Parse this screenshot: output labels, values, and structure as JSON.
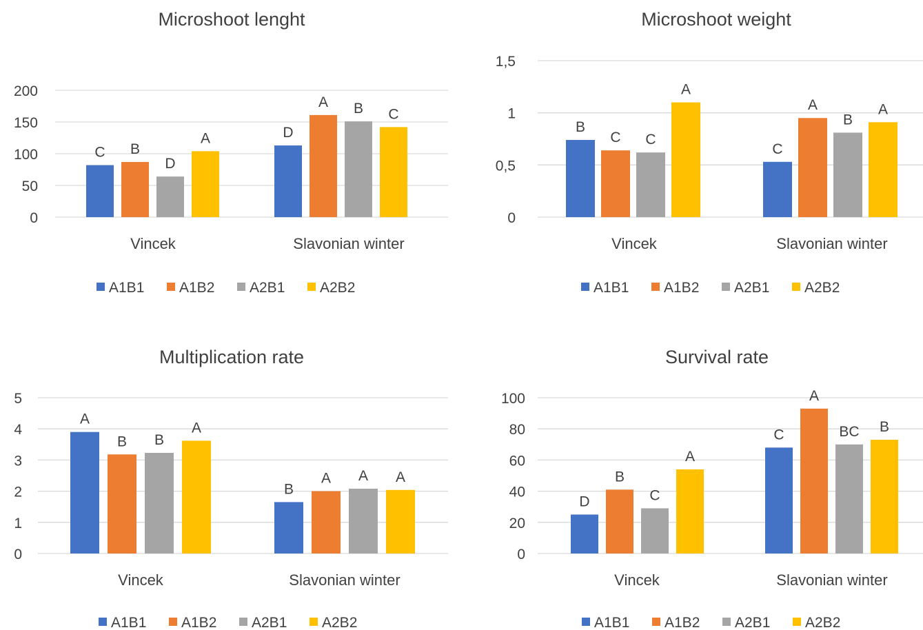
{
  "chart_data": [
    {
      "type": "bar",
      "title": "Microshoot lenght",
      "categories": [
        "Vincek",
        "Slavonian winter"
      ],
      "ylim": [
        0,
        200
      ],
      "yticks": [
        "0",
        "50",
        "100",
        "150",
        "200"
      ],
      "ytick_values": [
        0,
        50,
        100,
        150,
        200
      ],
      "grid": true,
      "legend_position": "bottom",
      "series": [
        {
          "name": "A1B1",
          "color": "#4472C4",
          "values": [
            82,
            113
          ],
          "labels": [
            "C",
            "D"
          ]
        },
        {
          "name": "A1B2",
          "color": "#ED7D31",
          "values": [
            87,
            161
          ],
          "labels": [
            "B",
            "A"
          ]
        },
        {
          "name": "A2B1",
          "color": "#A5A5A5",
          "values": [
            64,
            151
          ],
          "labels": [
            "D",
            "B"
          ]
        },
        {
          "name": "A2B2",
          "color": "#FFC000",
          "values": [
            104,
            142
          ],
          "labels": [
            "A",
            "C"
          ]
        }
      ]
    },
    {
      "type": "bar",
      "title": "Microshoot weight",
      "categories": [
        "Vincek",
        "Slavonian winter"
      ],
      "ylim": [
        0,
        1.5
      ],
      "yticks": [
        "0",
        "0,5",
        "1",
        "1,5"
      ],
      "ytick_values": [
        0,
        0.5,
        1,
        1.5
      ],
      "grid": true,
      "legend_position": "bottom",
      "series": [
        {
          "name": "A1B1",
          "color": "#4472C4",
          "values": [
            0.74,
            0.53
          ],
          "labels": [
            "B",
            "C"
          ]
        },
        {
          "name": "A1B2",
          "color": "#ED7D31",
          "values": [
            0.64,
            0.95
          ],
          "labels": [
            "C",
            "A"
          ]
        },
        {
          "name": "A2B1",
          "color": "#A5A5A5",
          "values": [
            0.62,
            0.81
          ],
          "labels": [
            "C",
            "B"
          ]
        },
        {
          "name": "A2B2",
          "color": "#FFC000",
          "values": [
            1.1,
            0.91
          ],
          "labels": [
            "A",
            "A"
          ]
        }
      ]
    },
    {
      "type": "bar",
      "title": "Multiplication rate",
      "categories": [
        "Vincek",
        "Slavonian winter"
      ],
      "ylim": [
        0,
        5
      ],
      "yticks": [
        "0",
        "1",
        "2",
        "3",
        "4",
        "5"
      ],
      "ytick_values": [
        0,
        1,
        2,
        3,
        4,
        5
      ],
      "grid": true,
      "legend_position": "bottom",
      "series": [
        {
          "name": "A1B1",
          "color": "#4472C4",
          "values": [
            3.9,
            1.65
          ],
          "labels": [
            "A",
            "B"
          ]
        },
        {
          "name": "A1B2",
          "color": "#ED7D31",
          "values": [
            3.18,
            2.0
          ],
          "labels": [
            "B",
            "A"
          ]
        },
        {
          "name": "A2B1",
          "color": "#A5A5A5",
          "values": [
            3.23,
            2.08
          ],
          "labels": [
            "B",
            "A"
          ]
        },
        {
          "name": "A2B2",
          "color": "#FFC000",
          "values": [
            3.62,
            2.04
          ],
          "labels": [
            "A",
            "A"
          ]
        }
      ]
    },
    {
      "type": "bar",
      "title": "Survival rate",
      "categories": [
        "Vincek",
        "Slavonian winter"
      ],
      "ylim": [
        0,
        100
      ],
      "yticks": [
        "0",
        "20",
        "40",
        "60",
        "80",
        "100"
      ],
      "ytick_values": [
        0,
        20,
        40,
        60,
        80,
        100
      ],
      "grid": true,
      "legend_position": "bottom",
      "series": [
        {
          "name": "A1B1",
          "color": "#4472C4",
          "values": [
            25,
            68
          ],
          "labels": [
            "D",
            "C"
          ]
        },
        {
          "name": "A1B2",
          "color": "#ED7D31",
          "values": [
            41,
            93
          ],
          "labels": [
            "B",
            "A"
          ]
        },
        {
          "name": "A2B1",
          "color": "#A5A5A5",
          "values": [
            29,
            70
          ],
          "labels": [
            "C",
            "BC"
          ]
        },
        {
          "name": "A2B2",
          "color": "#FFC000",
          "values": [
            54,
            73
          ],
          "labels": [
            "A",
            "B"
          ]
        }
      ]
    }
  ]
}
